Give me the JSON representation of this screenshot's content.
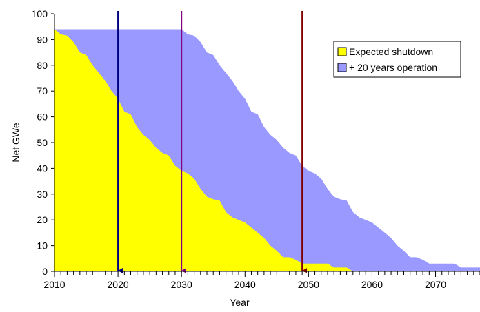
{
  "chart_data": {
    "type": "area",
    "title": "",
    "xlabel": "Year",
    "ylabel": "Net GWe",
    "xlim": [
      2010,
      2077
    ],
    "ylim": [
      0,
      100
    ],
    "x_ticks": [
      2010,
      2020,
      2030,
      2040,
      2050,
      2060,
      2070
    ],
    "y_ticks": [
      0,
      10,
      20,
      30,
      40,
      50,
      60,
      70,
      80,
      90,
      100
    ],
    "grid": false,
    "legend_position": "top-right",
    "series": [
      {
        "name": "+ 20 years operation",
        "color": "#9999ff",
        "x": [
          2010,
          2030,
          2031,
          2032,
          2033,
          2034,
          2035,
          2036,
          2037,
          2038,
          2039,
          2040,
          2041,
          2042,
          2043,
          2044,
          2045,
          2046,
          2047,
          2048,
          2049,
          2050,
          2051,
          2052,
          2053,
          2054,
          2055,
          2056,
          2057,
          2058,
          2059,
          2060,
          2061,
          2062,
          2063,
          2064,
          2065,
          2066,
          2067,
          2068,
          2069,
          2070,
          2071,
          2072,
          2073,
          2074,
          2075,
          2076,
          2077
        ],
        "values": [
          94,
          94,
          92,
          91.5,
          89,
          85,
          84,
          80,
          77,
          74,
          70,
          67,
          62,
          61,
          56,
          53,
          51,
          48,
          46,
          45,
          41,
          39,
          38,
          36,
          32,
          29,
          28,
          27.5,
          23,
          21,
          20,
          19,
          17,
          15,
          13,
          10,
          8,
          5.5,
          5.5,
          4.5,
          3,
          3,
          3,
          3,
          3,
          1.5,
          1.5,
          1.5,
          1.5
        ]
      },
      {
        "name": "Expected shutdown",
        "color": "#ffff00",
        "x": [
          2010,
          2011,
          2012,
          2013,
          2014,
          2015,
          2016,
          2017,
          2018,
          2019,
          2020,
          2021,
          2022,
          2023,
          2024,
          2025,
          2026,
          2027,
          2028,
          2029,
          2030,
          2031,
          2032,
          2033,
          2034,
          2035,
          2036,
          2037,
          2038,
          2039,
          2040,
          2041,
          2042,
          2043,
          2044,
          2045,
          2046,
          2047,
          2048,
          2049,
          2050,
          2051,
          2052,
          2053,
          2054,
          2055,
          2056,
          2057,
          2058
        ],
        "values": [
          94,
          92,
          91.5,
          89,
          85,
          84,
          80,
          77,
          74,
          70,
          67,
          62,
          61,
          56,
          53,
          51,
          48,
          46,
          45,
          41,
          39,
          38,
          36,
          32,
          29,
          28,
          27.5,
          23,
          21,
          20,
          19,
          17,
          15,
          13,
          10,
          8,
          5.5,
          5.5,
          4.5,
          3,
          3,
          3,
          3,
          3,
          1.5,
          1.5,
          1.5,
          0,
          0
        ]
      }
    ],
    "markers": [
      {
        "x": 2020,
        "color": "#000080"
      },
      {
        "x": 2030,
        "color": "#800080"
      },
      {
        "x": 2049,
        "color": "#800000"
      }
    ]
  }
}
